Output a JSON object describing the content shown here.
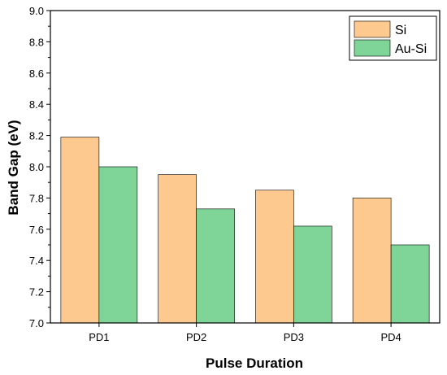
{
  "chart_data": {
    "type": "bar",
    "categories": [
      "PD1",
      "PD2",
      "PD3",
      "PD4"
    ],
    "series": [
      {
        "name": "Si",
        "values": [
          8.19,
          7.95,
          7.85,
          7.8
        ]
      },
      {
        "name": "Au-Si",
        "values": [
          8.0,
          7.73,
          7.62,
          7.5
        ]
      }
    ],
    "xlabel": "Pulse Duration",
    "ylabel": "Band Gap (eV)",
    "ylim": [
      7.0,
      9.0
    ],
    "yticks": [
      "7.0",
      "7.2",
      "7.4",
      "7.6",
      "7.8",
      "8.0",
      "8.2",
      "8.4",
      "8.6",
      "8.8",
      "9.0"
    ],
    "grid": false,
    "legend_position": "top-right",
    "colors": {
      "Si": "#fdc98f",
      "Au-Si": "#7fd598",
      "axis": "#000000"
    }
  }
}
